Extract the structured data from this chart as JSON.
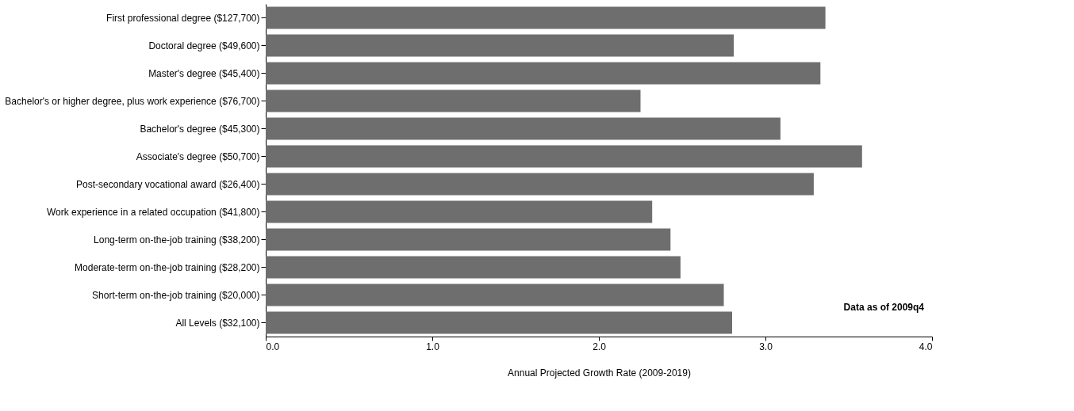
{
  "chart_data": {
    "type": "bar",
    "orientation": "horizontal",
    "xlabel": "Annual Projected Growth Rate (2009-2019)",
    "categories": [
      "First professional degree ($127,700)",
      "Doctoral degree ($49,600)",
      "Master's degree ($45,400)",
      "Bachelor's or higher degree, plus work experience ($76,700)",
      "Bachelor's degree ($45,300)",
      "Associate's degree ($50,700)",
      "Post-secondary vocational award ($26,400)",
      "Work experience in a related occupation ($41,800)",
      "Long-term on-the-job training ($38,200)",
      "Moderate-term on-the-job training ($28,200)",
      "Short-term on-the-job training ($20,000)",
      "All Levels ($32,100)"
    ],
    "values": [
      3.36,
      2.81,
      3.33,
      2.25,
      3.09,
      3.58,
      3.29,
      2.32,
      2.43,
      2.49,
      2.75,
      2.8
    ],
    "color": "#6e6e6e",
    "xlim": [
      0,
      4
    ],
    "xticks": [
      {
        "value": 0,
        "label": "0.0"
      },
      {
        "value": 1,
        "label": "1.0"
      },
      {
        "value": 2,
        "label": "2.0"
      },
      {
        "value": 3,
        "label": "3.0"
      },
      {
        "value": 4,
        "label": "4.0"
      }
    ],
    "grid": false,
    "annotations": [
      "Data as of 2009q4"
    ]
  }
}
